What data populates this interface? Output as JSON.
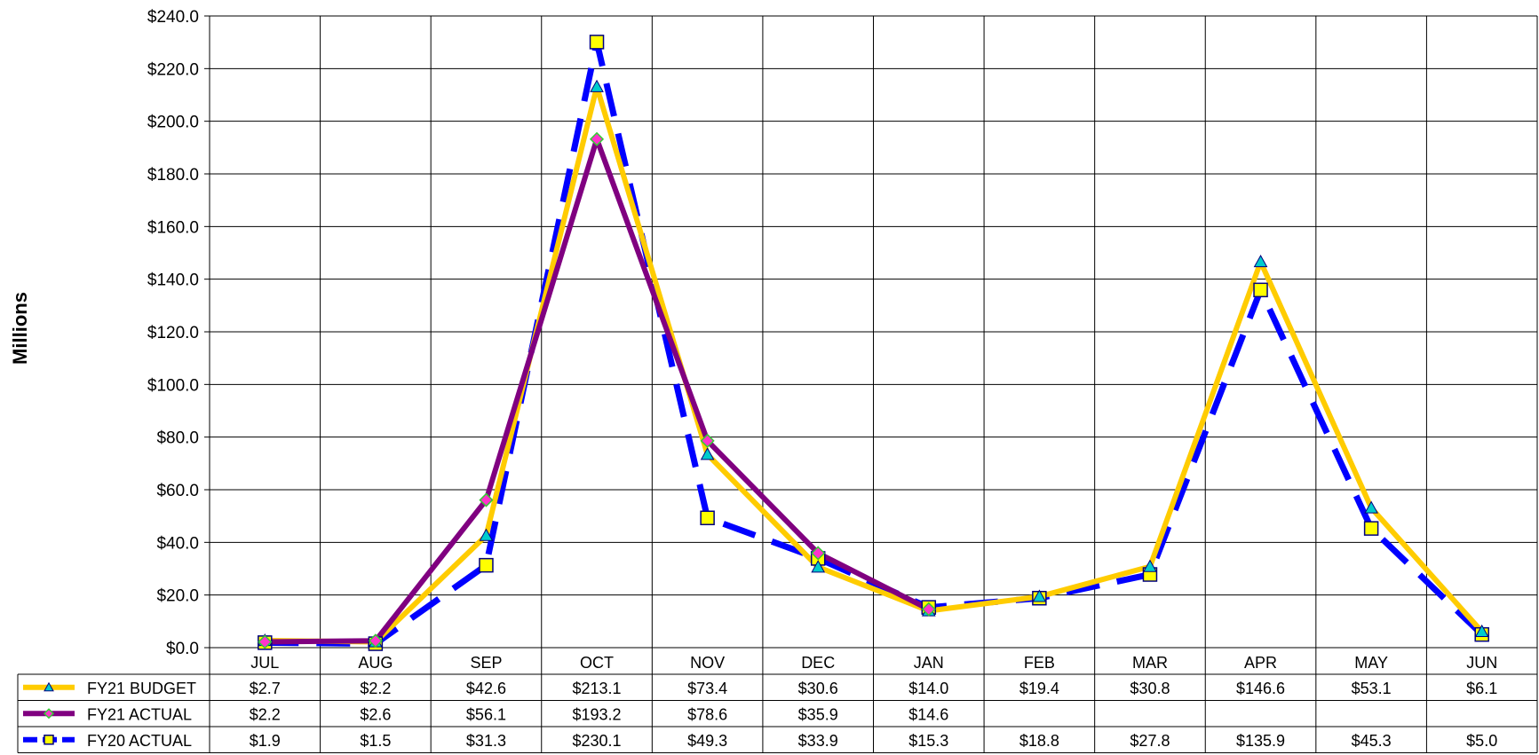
{
  "chart_data": {
    "type": "line",
    "title": "",
    "xlabel": "",
    "ylabel": "Millions",
    "ylim": [
      0,
      240
    ],
    "y_tick_labels": [
      "$0.0",
      "$20.0",
      "$40.0",
      "$60.0",
      "$80.0",
      "$100.0",
      "$120.0",
      "$140.0",
      "$160.0",
      "$180.0",
      "$200.0",
      "$220.0",
      "$240.0"
    ],
    "y_ticks": [
      0,
      20,
      40,
      60,
      80,
      100,
      120,
      140,
      160,
      180,
      200,
      220,
      240
    ],
    "categories": [
      "JUL",
      "AUG",
      "SEP",
      "OCT",
      "NOV",
      "DEC",
      "JAN",
      "FEB",
      "MAR",
      "APR",
      "MAY",
      "JUN"
    ],
    "grid": true,
    "legend_placement": "data table below chart",
    "series": [
      {
        "name": "FY21 BUDGET",
        "color": "#FFCC00",
        "marker": "triangle",
        "marker_color": "#00CCCC",
        "line_style": "solid",
        "values": [
          2.7,
          2.2,
          42.6,
          213.1,
          73.4,
          30.6,
          14.0,
          19.4,
          30.8,
          146.6,
          53.1,
          6.1
        ],
        "labels": [
          "$2.7",
          "$2.2",
          "$42.6",
          "$213.1",
          "$73.4",
          "$30.6",
          "$14.0",
          "$19.4",
          "$30.8",
          "$146.6",
          "$53.1",
          "$6.1"
        ]
      },
      {
        "name": "FY21 ACTUAL",
        "color": "#800080",
        "marker": "diamond",
        "marker_color": "#FF33CC",
        "line_style": "solid",
        "values": [
          2.2,
          2.6,
          56.1,
          193.2,
          78.6,
          35.9,
          14.6,
          null,
          null,
          null,
          null,
          null
        ],
        "labels": [
          "$2.2",
          "$2.6",
          "$56.1",
          "$193.2",
          "$78.6",
          "$35.9",
          "$14.6",
          "",
          "",
          "",
          "",
          ""
        ]
      },
      {
        "name": "FY20 ACTUAL",
        "color": "#0000FF",
        "marker": "square",
        "marker_color": "#FFFF00",
        "line_style": "dashed",
        "values": [
          1.9,
          1.5,
          31.3,
          230.1,
          49.3,
          33.9,
          15.3,
          18.8,
          27.8,
          135.9,
          45.3,
          5.0
        ],
        "labels": [
          "$1.9",
          "$1.5",
          "$31.3",
          "$230.1",
          "$49.3",
          "$33.9",
          "$15.3",
          "$18.8",
          "$27.8",
          "$135.9",
          "$45.3",
          "$5.0"
        ]
      }
    ]
  }
}
